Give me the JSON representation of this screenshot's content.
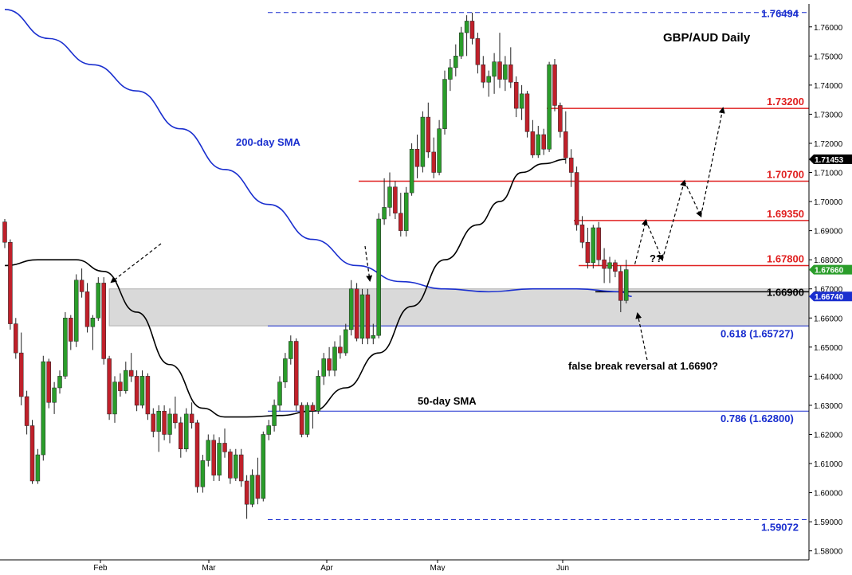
{
  "chart_data": {
    "type": "candlestick",
    "title": "GBP/AUD Daily",
    "ylim": [
      1.578,
      1.7665
    ],
    "y_ticks": [
      "1.76000",
      "1.75000",
      "1.74000",
      "1.73000",
      "1.72000",
      "1.71000",
      "1.70000",
      "1.69000",
      "1.68000",
      "1.67000",
      "1.66000",
      "1.65000",
      "1.64000",
      "1.63000",
      "1.62000",
      "1.61000",
      "1.60000",
      "1.59000",
      "1.58000"
    ],
    "x_labels": [
      "Feb",
      "Mar",
      "Apr",
      "May",
      "Jun"
    ],
    "colors": {
      "up": "#2a9d2a",
      "down": "#c0202a",
      "sma200": "#1a2fcf",
      "sma50": "#000000",
      "resistance": "#e02020",
      "fib": "#1a2fcf",
      "zone": "#d9d9d9"
    },
    "candles": [
      {
        "o": 1.693,
        "h": 1.694,
        "l": 1.684,
        "c": 1.686
      },
      {
        "o": 1.686,
        "h": 1.687,
        "l": 1.656,
        "c": 1.658
      },
      {
        "o": 1.658,
        "h": 1.66,
        "l": 1.646,
        "c": 1.648
      },
      {
        "o": 1.648,
        "h": 1.655,
        "l": 1.63,
        "c": 1.633
      },
      {
        "o": 1.633,
        "h": 1.635,
        "l": 1.62,
        "c": 1.623
      },
      {
        "o": 1.623,
        "h": 1.625,
        "l": 1.603,
        "c": 1.604
      },
      {
        "o": 1.604,
        "h": 1.615,
        "l": 1.603,
        "c": 1.613
      },
      {
        "o": 1.613,
        "h": 1.647,
        "l": 1.611,
        "c": 1.645
      },
      {
        "o": 1.645,
        "h": 1.646,
        "l": 1.629,
        "c": 1.631
      },
      {
        "o": 1.631,
        "h": 1.638,
        "l": 1.627,
        "c": 1.636
      },
      {
        "o": 1.636,
        "h": 1.642,
        "l": 1.634,
        "c": 1.64
      },
      {
        "o": 1.64,
        "h": 1.662,
        "l": 1.639,
        "c": 1.66
      },
      {
        "o": 1.66,
        "h": 1.661,
        "l": 1.649,
        "c": 1.652
      },
      {
        "o": 1.652,
        "h": 1.675,
        "l": 1.65,
        "c": 1.673
      },
      {
        "o": 1.673,
        "h": 1.677,
        "l": 1.667,
        "c": 1.669
      },
      {
        "o": 1.669,
        "h": 1.672,
        "l": 1.655,
        "c": 1.657
      },
      {
        "o": 1.657,
        "h": 1.661,
        "l": 1.649,
        "c": 1.66
      },
      {
        "o": 1.66,
        "h": 1.674,
        "l": 1.659,
        "c": 1.672
      },
      {
        "o": 1.672,
        "h": 1.674,
        "l": 1.644,
        "c": 1.646
      },
      {
        "o": 1.646,
        "h": 1.647,
        "l": 1.625,
        "c": 1.627
      },
      {
        "o": 1.627,
        "h": 1.64,
        "l": 1.624,
        "c": 1.638
      },
      {
        "o": 1.638,
        "h": 1.641,
        "l": 1.633,
        "c": 1.635
      },
      {
        "o": 1.635,
        "h": 1.645,
        "l": 1.634,
        "c": 1.642
      },
      {
        "o": 1.642,
        "h": 1.648,
        "l": 1.638,
        "c": 1.64
      },
      {
        "o": 1.64,
        "h": 1.642,
        "l": 1.628,
        "c": 1.63
      },
      {
        "o": 1.63,
        "h": 1.642,
        "l": 1.629,
        "c": 1.64
      },
      {
        "o": 1.64,
        "h": 1.641,
        "l": 1.625,
        "c": 1.627
      },
      {
        "o": 1.627,
        "h": 1.629,
        "l": 1.619,
        "c": 1.621
      },
      {
        "o": 1.621,
        "h": 1.63,
        "l": 1.614,
        "c": 1.628
      },
      {
        "o": 1.628,
        "h": 1.63,
        "l": 1.618,
        "c": 1.62
      },
      {
        "o": 1.62,
        "h": 1.629,
        "l": 1.617,
        "c": 1.627
      },
      {
        "o": 1.627,
        "h": 1.633,
        "l": 1.622,
        "c": 1.624
      },
      {
        "o": 1.624,
        "h": 1.626,
        "l": 1.612,
        "c": 1.615
      },
      {
        "o": 1.615,
        "h": 1.629,
        "l": 1.614,
        "c": 1.627
      },
      {
        "o": 1.627,
        "h": 1.631,
        "l": 1.622,
        "c": 1.624
      },
      {
        "o": 1.624,
        "h": 1.625,
        "l": 1.6,
        "c": 1.602
      },
      {
        "o": 1.602,
        "h": 1.613,
        "l": 1.6,
        "c": 1.611
      },
      {
        "o": 1.611,
        "h": 1.62,
        "l": 1.609,
        "c": 1.618
      },
      {
        "o": 1.618,
        "h": 1.62,
        "l": 1.604,
        "c": 1.606
      },
      {
        "o": 1.606,
        "h": 1.619,
        "l": 1.604,
        "c": 1.617
      },
      {
        "o": 1.617,
        "h": 1.622,
        "l": 1.612,
        "c": 1.614
      },
      {
        "o": 1.614,
        "h": 1.615,
        "l": 1.603,
        "c": 1.605
      },
      {
        "o": 1.605,
        "h": 1.615,
        "l": 1.604,
        "c": 1.613
      },
      {
        "o": 1.613,
        "h": 1.615,
        "l": 1.602,
        "c": 1.604
      },
      {
        "o": 1.604,
        "h": 1.606,
        "l": 1.591,
        "c": 1.596
      },
      {
        "o": 1.596,
        "h": 1.608,
        "l": 1.595,
        "c": 1.606
      },
      {
        "o": 1.606,
        "h": 1.612,
        "l": 1.596,
        "c": 1.598
      },
      {
        "o": 1.598,
        "h": 1.621,
        "l": 1.597,
        "c": 1.62
      },
      {
        "o": 1.62,
        "h": 1.625,
        "l": 1.618,
        "c": 1.623
      },
      {
        "o": 1.623,
        "h": 1.632,
        "l": 1.621,
        "c": 1.63
      },
      {
        "o": 1.63,
        "h": 1.64,
        "l": 1.628,
        "c": 1.638
      },
      {
        "o": 1.638,
        "h": 1.648,
        "l": 1.636,
        "c": 1.646
      },
      {
        "o": 1.646,
        "h": 1.654,
        "l": 1.644,
        "c": 1.652
      },
      {
        "o": 1.652,
        "h": 1.653,
        "l": 1.628,
        "c": 1.63
      },
      {
        "o": 1.63,
        "h": 1.631,
        "l": 1.619,
        "c": 1.62
      },
      {
        "o": 1.62,
        "h": 1.631,
        "l": 1.619,
        "c": 1.63
      },
      {
        "o": 1.63,
        "h": 1.631,
        "l": 1.622,
        "c": 1.628
      },
      {
        "o": 1.628,
        "h": 1.642,
        "l": 1.627,
        "c": 1.64
      },
      {
        "o": 1.64,
        "h": 1.648,
        "l": 1.637,
        "c": 1.646
      },
      {
        "o": 1.646,
        "h": 1.65,
        "l": 1.64,
        "c": 1.642
      },
      {
        "o": 1.642,
        "h": 1.652,
        "l": 1.64,
        "c": 1.65
      },
      {
        "o": 1.65,
        "h": 1.654,
        "l": 1.646,
        "c": 1.648
      },
      {
        "o": 1.648,
        "h": 1.658,
        "l": 1.647,
        "c": 1.656
      },
      {
        "o": 1.656,
        "h": 1.673,
        "l": 1.654,
        "c": 1.67
      },
      {
        "o": 1.67,
        "h": 1.672,
        "l": 1.652,
        "c": 1.653
      },
      {
        "o": 1.653,
        "h": 1.67,
        "l": 1.651,
        "c": 1.668
      },
      {
        "o": 1.668,
        "h": 1.67,
        "l": 1.651,
        "c": 1.653
      },
      {
        "o": 1.653,
        "h": 1.658,
        "l": 1.651,
        "c": 1.654
      },
      {
        "o": 1.654,
        "h": 1.696,
        "l": 1.653,
        "c": 1.694
      },
      {
        "o": 1.694,
        "h": 1.708,
        "l": 1.692,
        "c": 1.698
      },
      {
        "o": 1.698,
        "h": 1.71,
        "l": 1.695,
        "c": 1.705
      },
      {
        "o": 1.705,
        "h": 1.707,
        "l": 1.694,
        "c": 1.696
      },
      {
        "o": 1.696,
        "h": 1.703,
        "l": 1.688,
        "c": 1.69
      },
      {
        "o": 1.69,
        "h": 1.705,
        "l": 1.688,
        "c": 1.703
      },
      {
        "o": 1.703,
        "h": 1.72,
        "l": 1.702,
        "c": 1.718
      },
      {
        "o": 1.718,
        "h": 1.723,
        "l": 1.708,
        "c": 1.712
      },
      {
        "o": 1.712,
        "h": 1.731,
        "l": 1.71,
        "c": 1.729
      },
      {
        "o": 1.729,
        "h": 1.734,
        "l": 1.715,
        "c": 1.717
      },
      {
        "o": 1.717,
        "h": 1.722,
        "l": 1.708,
        "c": 1.71
      },
      {
        "o": 1.71,
        "h": 1.728,
        "l": 1.709,
        "c": 1.725
      },
      {
        "o": 1.725,
        "h": 1.745,
        "l": 1.723,
        "c": 1.742
      },
      {
        "o": 1.742,
        "h": 1.749,
        "l": 1.738,
        "c": 1.746
      },
      {
        "o": 1.746,
        "h": 1.754,
        "l": 1.743,
        "c": 1.75
      },
      {
        "o": 1.75,
        "h": 1.76,
        "l": 1.749,
        "c": 1.758
      },
      {
        "o": 1.758,
        "h": 1.764,
        "l": 1.75,
        "c": 1.762
      },
      {
        "o": 1.762,
        "h": 1.7649,
        "l": 1.754,
        "c": 1.756
      },
      {
        "o": 1.756,
        "h": 1.758,
        "l": 1.744,
        "c": 1.747
      },
      {
        "o": 1.747,
        "h": 1.75,
        "l": 1.739,
        "c": 1.741
      },
      {
        "o": 1.741,
        "h": 1.745,
        "l": 1.736,
        "c": 1.743
      },
      {
        "o": 1.743,
        "h": 1.751,
        "l": 1.737,
        "c": 1.748
      },
      {
        "o": 1.748,
        "h": 1.758,
        "l": 1.739,
        "c": 1.742
      },
      {
        "o": 1.742,
        "h": 1.75,
        "l": 1.738,
        "c": 1.747
      },
      {
        "o": 1.747,
        "h": 1.753,
        "l": 1.739,
        "c": 1.741
      },
      {
        "o": 1.741,
        "h": 1.743,
        "l": 1.729,
        "c": 1.732
      },
      {
        "o": 1.732,
        "h": 1.74,
        "l": 1.728,
        "c": 1.737
      },
      {
        "o": 1.737,
        "h": 1.738,
        "l": 1.722,
        "c": 1.724
      },
      {
        "o": 1.724,
        "h": 1.728,
        "l": 1.715,
        "c": 1.716
      },
      {
        "o": 1.716,
        "h": 1.726,
        "l": 1.715,
        "c": 1.723
      },
      {
        "o": 1.723,
        "h": 1.725,
        "l": 1.716,
        "c": 1.718
      },
      {
        "o": 1.718,
        "h": 1.748,
        "l": 1.717,
        "c": 1.747
      },
      {
        "o": 1.747,
        "h": 1.749,
        "l": 1.731,
        "c": 1.733
      },
      {
        "o": 1.733,
        "h": 1.734,
        "l": 1.722,
        "c": 1.724
      },
      {
        "o": 1.724,
        "h": 1.731,
        "l": 1.713,
        "c": 1.715
      },
      {
        "o": 1.715,
        "h": 1.718,
        "l": 1.705,
        "c": 1.71
      },
      {
        "o": 1.71,
        "h": 1.712,
        "l": 1.69,
        "c": 1.692
      },
      {
        "o": 1.692,
        "h": 1.695,
        "l": 1.684,
        "c": 1.686
      },
      {
        "o": 1.686,
        "h": 1.691,
        "l": 1.677,
        "c": 1.679
      },
      {
        "o": 1.679,
        "h": 1.692,
        "l": 1.677,
        "c": 1.691
      },
      {
        "o": 1.691,
        "h": 1.693,
        "l": 1.678,
        "c": 1.68
      },
      {
        "o": 1.68,
        "h": 1.684,
        "l": 1.672,
        "c": 1.677
      },
      {
        "o": 1.677,
        "h": 1.681,
        "l": 1.672,
        "c": 1.679
      },
      {
        "o": 1.679,
        "h": 1.68,
        "l": 1.674,
        "c": 1.676
      },
      {
        "o": 1.676,
        "h": 1.678,
        "l": 1.662,
        "c": 1.666
      },
      {
        "o": 1.666,
        "h": 1.68,
        "l": 1.665,
        "c": 1.6766
      }
    ],
    "sma200": [
      [
        0,
        1.766
      ],
      [
        8,
        1.756
      ],
      [
        16,
        1.747
      ],
      [
        24,
        1.738
      ],
      [
        32,
        1.725
      ],
      [
        40,
        1.711
      ],
      [
        48,
        1.699
      ],
      [
        56,
        1.687
      ],
      [
        64,
        1.678
      ],
      [
        72,
        1.6725
      ],
      [
        80,
        1.67
      ],
      [
        88,
        1.669
      ],
      [
        96,
        1.67
      ],
      [
        104,
        1.67
      ],
      [
        112,
        1.669
      ],
      [
        114,
        1.6674
      ]
    ],
    "sma50": [
      [
        0,
        1.678
      ],
      [
        6,
        1.68
      ],
      [
        13,
        1.68
      ],
      [
        18,
        1.676
      ],
      [
        24,
        1.662
      ],
      [
        30,
        1.644
      ],
      [
        36,
        1.629
      ],
      [
        40,
        1.626
      ],
      [
        44,
        1.626
      ],
      [
        50,
        1.6265
      ],
      [
        56,
        1.628
      ],
      [
        62,
        1.636
      ],
      [
        68,
        1.648
      ],
      [
        74,
        1.664
      ],
      [
        80,
        1.68
      ],
      [
        86,
        1.692
      ],
      [
        90,
        1.7
      ],
      [
        94,
        1.71
      ],
      [
        98,
        1.713
      ],
      [
        102,
        1.7145
      ]
    ],
    "zone": {
      "top": 1.67,
      "bottom": 1.6573
    },
    "levels": {
      "high_dash": {
        "value": 1.76494,
        "label": "1.76494"
      },
      "r1": {
        "value": 1.732,
        "label": "1.73200"
      },
      "r2": {
        "value": 1.707,
        "label": "1.70700"
      },
      "r3": {
        "value": 1.6935,
        "label": "1.69350"
      },
      "r4": {
        "value": 1.678,
        "label": "1.67800"
      },
      "support": {
        "value": 1.669,
        "label": "1.66900"
      },
      "fib618": {
        "value": 1.65727,
        "label": "0.618 (1.65727)"
      },
      "fib786": {
        "value": 1.628,
        "label": "0.786 (1.62800)"
      },
      "low_dash": {
        "value": 1.59072,
        "label": "1.59072"
      }
    },
    "price_tags": [
      {
        "value": 1.71453,
        "label": "1.71453",
        "color": "#000000"
      },
      {
        "value": 1.6766,
        "label": "1.67660",
        "color": "#2a9d2a"
      },
      {
        "value": 1.6674,
        "label": "1.66740",
        "color": "#1a2fcf"
      }
    ],
    "annotations": {
      "sma200_label": "200-day SMA",
      "sma50_label": "50-day SMA",
      "question": "??",
      "false_break": "false break reversal at 1.6690?"
    },
    "scenario_path": [
      [
        114,
        1.6785
      ],
      [
        116,
        1.6935
      ],
      [
        119,
        1.68
      ],
      [
        123,
        1.707
      ],
      [
        126,
        1.695
      ],
      [
        130,
        1.732
      ]
    ]
  }
}
